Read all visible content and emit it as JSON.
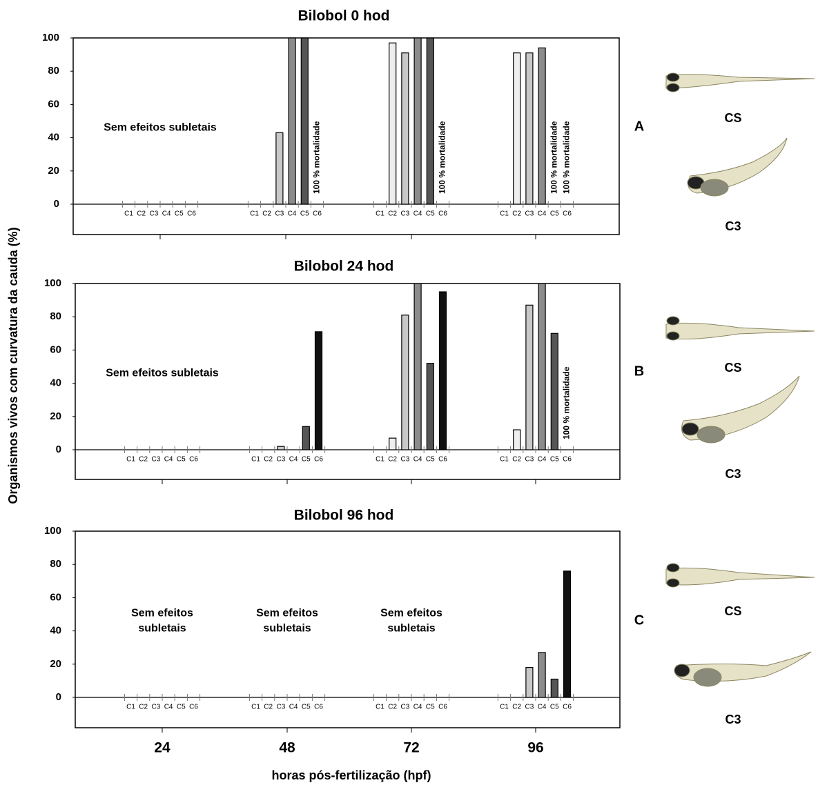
{
  "figure": {
    "ylabel": "Organismos vivos com curvatura da cauda (%)",
    "xlabel": "horas pós-fertilização (hpf)",
    "groups": [
      24,
      48,
      72,
      96
    ]
  },
  "chart_data": [
    {
      "type": "bar",
      "title": "Bilobol 0 hod",
      "panel": "A",
      "fish_labels": [
        "CS",
        "C3"
      ],
      "categories": [
        "C1",
        "C2",
        "C3",
        "C4",
        "C5",
        "C6"
      ],
      "colors": [
        "#ffffff",
        "#eeeeee",
        "#c8c8c8",
        "#8c8c8c",
        "#555555",
        "#111111"
      ],
      "ylim": [
        0,
        100
      ],
      "yticks": [
        0,
        20,
        40,
        60,
        80,
        100
      ],
      "groups": [
        {
          "values": [
            null,
            null,
            null,
            null,
            null,
            null
          ],
          "note": [
            "Sem efeitos subletais"
          ]
        },
        {
          "values": [
            null,
            null,
            43,
            100,
            100,
            null
          ],
          "annotations": [
            {
              "category": "C6",
              "text": "100 % mortalidade"
            }
          ]
        },
        {
          "values": [
            null,
            97,
            91,
            100,
            100,
            null
          ],
          "annotations": [
            {
              "category": "C6",
              "text": "100 % mortalidade"
            }
          ]
        },
        {
          "values": [
            null,
            91,
            91,
            94,
            null,
            null
          ],
          "annotations": [
            {
              "category": "C5",
              "text": "100 % mortalidade"
            },
            {
              "category": "C6",
              "text": "100 % mortalidade"
            }
          ]
        }
      ]
    },
    {
      "type": "bar",
      "title": "Bilobol 24 hod",
      "panel": "B",
      "fish_labels": [
        "CS",
        "C3"
      ],
      "categories": [
        "C1",
        "C2",
        "C3",
        "C4",
        "C5",
        "C6"
      ],
      "colors": [
        "#ffffff",
        "#eeeeee",
        "#c8c8c8",
        "#8c8c8c",
        "#555555",
        "#111111"
      ],
      "ylim": [
        0,
        100
      ],
      "yticks": [
        0,
        20,
        40,
        60,
        80,
        100
      ],
      "groups": [
        {
          "values": [
            null,
            null,
            null,
            null,
            null,
            null
          ],
          "note": [
            "Sem efeitos subletais"
          ]
        },
        {
          "values": [
            null,
            null,
            2,
            null,
            14,
            71
          ]
        },
        {
          "values": [
            null,
            7,
            81,
            100,
            52,
            95
          ]
        },
        {
          "values": [
            null,
            12,
            87,
            100,
            70,
            null
          ],
          "annotations": [
            {
              "category": "C6",
              "text": "100 % mortalidade"
            }
          ]
        }
      ]
    },
    {
      "type": "bar",
      "title": "Bilobol 96 hod",
      "panel": "C",
      "fish_labels": [
        "CS",
        "C3"
      ],
      "categories": [
        "C1",
        "C2",
        "C3",
        "C4",
        "C5",
        "C6"
      ],
      "colors": [
        "#ffffff",
        "#eeeeee",
        "#c8c8c8",
        "#8c8c8c",
        "#555555",
        "#111111"
      ],
      "ylim": [
        0,
        100
      ],
      "yticks": [
        0,
        20,
        40,
        60,
        80,
        100
      ],
      "groups": [
        {
          "values": [
            null,
            null,
            null,
            null,
            null,
            null
          ],
          "note": [
            "Sem efeitos",
            "subletais"
          ]
        },
        {
          "values": [
            null,
            null,
            null,
            null,
            null,
            null
          ],
          "note": [
            "Sem efeitos",
            "subletais"
          ]
        },
        {
          "values": [
            null,
            null,
            null,
            null,
            null,
            null
          ],
          "note": [
            "Sem efeitos",
            "subletais"
          ]
        },
        {
          "values": [
            null,
            null,
            18,
            27,
            11,
            76
          ]
        }
      ]
    }
  ]
}
